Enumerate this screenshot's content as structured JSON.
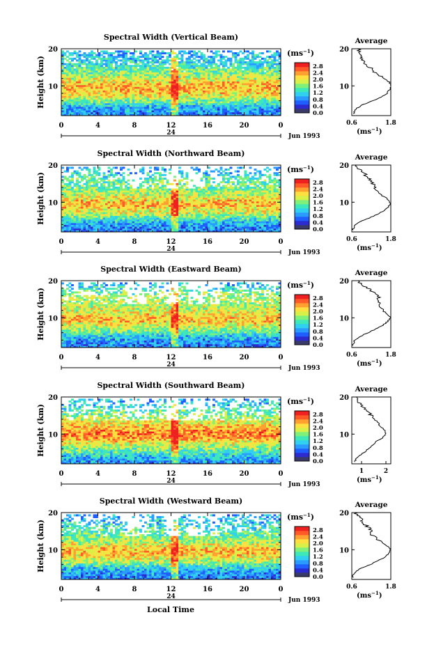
{
  "figure": {
    "xlabel": "Local Time",
    "date_label": "Jun 1993",
    "cb_unit": "(ms",
    "cb_exp": "−1",
    "avg_title": "Average",
    "ylabel": "Height (km)",
    "day_marker": "24"
  },
  "chart_data": [
    {
      "type": "heatmap",
      "title": "Spectral Width (Vertical Beam)",
      "ylabel": "Height (km)",
      "xlabel": "",
      "xlim": [
        0,
        24
      ],
      "x_ticks": [
        "0",
        "4",
        "8",
        "12",
        "16",
        "20",
        "0"
      ],
      "ylim": [
        2,
        20
      ],
      "y_ticks": [
        "20",
        "10"
      ],
      "colorbar": {
        "unit": "(ms⁻¹)",
        "ticks": [
          "2.8",
          "2.4",
          "2.0",
          "1.6",
          "1.2",
          "0.8",
          "0.4",
          "0.0"
        ],
        "range": [
          0,
          3.0
        ]
      },
      "date": "Jun 1993",
      "day_marker": "24",
      "profile": {
        "title": "Average",
        "xlabel": "(ms⁻¹)",
        "x_ticks": [
          "0.6",
          "1.8"
        ],
        "xlim": [
          0.6,
          1.8
        ],
        "y_ticks": [
          "20",
          "10"
        ],
        "height": [
          2.5,
          4,
          5,
          6,
          7,
          8,
          9,
          10,
          11,
          12,
          14,
          16,
          18,
          20
        ],
        "width": [
          0.65,
          0.75,
          0.95,
          1.25,
          1.5,
          1.68,
          1.78,
          1.82,
          1.75,
          1.58,
          1.28,
          1.02,
          0.88,
          0.8
        ]
      }
    },
    {
      "type": "heatmap",
      "title": "Spectral Width (Northward Beam)",
      "ylabel": "Height (km)",
      "xlabel": "",
      "xlim": [
        0,
        24
      ],
      "x_ticks": [
        "0",
        "4",
        "8",
        "12",
        "16",
        "20",
        "0"
      ],
      "ylim": [
        2,
        20
      ],
      "y_ticks": [
        "20",
        "10"
      ],
      "colorbar": {
        "unit": "(ms⁻¹)",
        "ticks": [
          "2.8",
          "2.4",
          "2.0",
          "1.6",
          "1.2",
          "0.8",
          "0.4",
          "0.0"
        ],
        "range": [
          0,
          3.0
        ]
      },
      "date": "Jun 1993",
      "day_marker": "24",
      "profile": {
        "title": "Average",
        "xlabel": "(ms⁻¹)",
        "x_ticks": [
          "0.6",
          "1.8"
        ],
        "xlim": [
          0.6,
          1.8
        ],
        "y_ticks": [
          "20",
          "10"
        ],
        "height": [
          2.5,
          4,
          5,
          6,
          7,
          8,
          9,
          10,
          11,
          12,
          14,
          16,
          18,
          20
        ],
        "width": [
          0.62,
          0.72,
          0.9,
          1.2,
          1.45,
          1.62,
          1.75,
          1.78,
          1.68,
          1.5,
          1.3,
          1.18,
          0.95,
          0.72
        ]
      }
    },
    {
      "type": "heatmap",
      "title": "Spectral Width (Eastward Beam)",
      "ylabel": "Height (km)",
      "xlabel": "",
      "xlim": [
        0,
        24
      ],
      "x_ticks": [
        "0",
        "4",
        "8",
        "12",
        "16",
        "20",
        "0"
      ],
      "ylim": [
        2,
        20
      ],
      "y_ticks": [
        "20",
        "10"
      ],
      "colorbar": {
        "unit": "(ms⁻¹)",
        "ticks": [
          "2.8",
          "2.4",
          "2.0",
          "1.6",
          "1.2",
          "0.8",
          "0.4",
          "0.0"
        ],
        "range": [
          0,
          3.0
        ]
      },
      "date": "Jun 1993",
      "day_marker": "24",
      "profile": {
        "title": "Average",
        "xlabel": "(ms⁻¹)",
        "x_ticks": [
          "0.6",
          "1.8"
        ],
        "xlim": [
          0.6,
          1.8
        ],
        "y_ticks": [
          "20",
          "10"
        ],
        "height": [
          2.5,
          4,
          5,
          6,
          7,
          8,
          9,
          10,
          11,
          12,
          14,
          16,
          18,
          20
        ],
        "width": [
          0.62,
          0.7,
          0.85,
          1.1,
          1.35,
          1.55,
          1.7,
          1.78,
          1.7,
          1.55,
          1.42,
          1.4,
          1.1,
          0.75
        ]
      }
    },
    {
      "type": "heatmap",
      "title": "Spectral Width (Southward Beam)",
      "ylabel": "Height (km)",
      "xlabel": "",
      "xlim": [
        0,
        24
      ],
      "x_ticks": [
        "0",
        "4",
        "8",
        "12",
        "16",
        "20",
        "0"
      ],
      "ylim": [
        2,
        20
      ],
      "y_ticks": [
        "20",
        "10"
      ],
      "colorbar": {
        "unit": "(ms⁻¹)",
        "ticks": [
          "2.8",
          "2.4",
          "2.0",
          "1.6",
          "1.2",
          "0.8",
          "0.4",
          "0.0"
        ],
        "range": [
          0,
          3.0
        ]
      },
      "date": "Jun 1993",
      "day_marker": "24",
      "profile": {
        "title": "Average",
        "xlabel": "(ms⁻¹)",
        "x_ticks": [
          "1",
          "2"
        ],
        "xlim": [
          0.6,
          2.2
        ],
        "y_ticks": [
          "20",
          "10"
        ],
        "height": [
          2.5,
          4,
          5,
          6,
          7,
          8,
          9,
          10,
          11,
          12,
          14,
          16,
          18,
          20
        ],
        "width": [
          0.7,
          0.85,
          1.1,
          1.25,
          1.45,
          1.6,
          1.85,
          2.0,
          1.95,
          1.8,
          1.55,
          1.25,
          0.95,
          0.75
        ]
      }
    },
    {
      "type": "heatmap",
      "title": "Spectral Width (Westward Beam)",
      "ylabel": "Height (km)",
      "xlabel": "Local Time",
      "xlim": [
        0,
        24
      ],
      "x_ticks": [
        "0",
        "4",
        "8",
        "12",
        "16",
        "20",
        "0"
      ],
      "ylim": [
        2,
        20
      ],
      "y_ticks": [
        "20",
        "10"
      ],
      "colorbar": {
        "unit": "(ms⁻¹)",
        "ticks": [
          "2.8",
          "2.4",
          "2.0",
          "1.6",
          "1.2",
          "0.8",
          "0.4",
          "0.0"
        ],
        "range": [
          0,
          3.0
        ]
      },
      "date": "Jun 1993",
      "day_marker": "24",
      "profile": {
        "title": "Average",
        "xlabel": "(ms⁻¹)",
        "x_ticks": [
          "0.6",
          "1.8"
        ],
        "xlim": [
          0.6,
          1.8
        ],
        "y_ticks": [
          "20",
          "10"
        ],
        "height": [
          2.5,
          4,
          5,
          6,
          7,
          8,
          9,
          10,
          11,
          12,
          14,
          16,
          18,
          20
        ],
        "width": [
          0.62,
          0.7,
          0.88,
          1.15,
          1.42,
          1.6,
          1.75,
          1.8,
          1.7,
          1.5,
          1.25,
          1.1,
          0.9,
          0.72
        ]
      }
    }
  ],
  "colors": {
    "colormap": [
      "#3a3a6a",
      "#2b2bd0",
      "#1f5fff",
      "#2a9cff",
      "#32d0f0",
      "#3ee8b8",
      "#7ff07a",
      "#d8f048",
      "#ffe040",
      "#ffa030",
      "#ff5a28",
      "#ee2020"
    ]
  }
}
